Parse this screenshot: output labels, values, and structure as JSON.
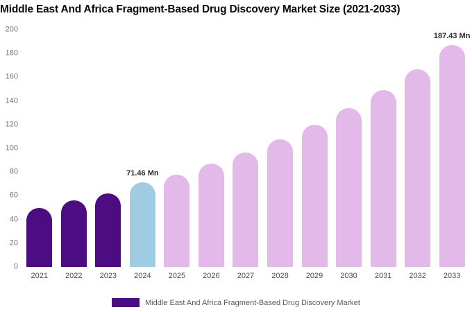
{
  "chart_data": {
    "type": "bar",
    "title": "Middle East And Africa Fragment-Based Drug Discovery Market Size (2021-2033)",
    "categories": [
      "2021",
      "2022",
      "2023",
      "2024",
      "2025",
      "2026",
      "2027",
      "2028",
      "2029",
      "2030",
      "2031",
      "2032",
      "2033"
    ],
    "values": [
      50,
      56,
      62,
      71.46,
      78,
      87,
      96.5,
      107.5,
      120,
      134,
      149,
      166.5,
      187.43
    ],
    "unit": "Mn",
    "ylim": [
      0,
      200
    ],
    "y_ticks": [
      0,
      20,
      40,
      60,
      80,
      100,
      120,
      140,
      160,
      180,
      200
    ],
    "grid": false,
    "legend_position": "bottom",
    "bar_colors": [
      "#4b0d81",
      "#4b0d81",
      "#4b0d81",
      "#a0cce3",
      "#e2b9e8",
      "#e2b9e8",
      "#e2b9e8",
      "#e2b9e8",
      "#e2b9e8",
      "#e2b9e8",
      "#e2b9e8",
      "#e2b9e8",
      "#e2b9e8"
    ],
    "annotations": [
      {
        "index": 3,
        "label": "71.46 Mn"
      },
      {
        "index": 12,
        "label": "187.43 Mn"
      }
    ],
    "legend_entries": [
      {
        "label": "Middle East And Africa Fragment-Based Drug Discovery Market",
        "color": "#4b0d81"
      }
    ],
    "xlabel": "",
    "ylabel": ""
  },
  "colors": {
    "historical_bar": "#4b0d81",
    "current_year_bar": "#a0cce3",
    "forecast_bar": "#e2b9e8",
    "title_text": "#0a0a0a",
    "axis_text": "#757575"
  }
}
